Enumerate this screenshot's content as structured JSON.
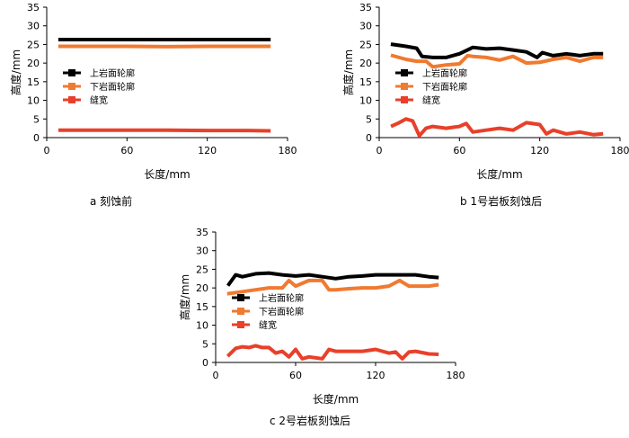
{
  "chart_data": [
    {
      "type": "line",
      "caption": "a 刻蚀前",
      "xlabel": "长度/mm",
      "ylabel": "高度/mm",
      "xlim": [
        0,
        180
      ],
      "ylim": [
        0,
        35
      ],
      "xticks": [
        "0",
        "60",
        "120",
        "180"
      ],
      "yticks": [
        "0",
        "5",
        "10",
        "15",
        "20",
        "25",
        "30",
        "35"
      ],
      "legend_position": "left-middle",
      "series": [
        {
          "name": "上岩面轮廓",
          "color": "#000000",
          "x": [
            10,
            30,
            60,
            90,
            120,
            150,
            166
          ],
          "y": [
            26.3,
            26.3,
            26.3,
            26.3,
            26.3,
            26.3,
            26.3
          ]
        },
        {
          "name": "下岩面轮廓",
          "color": "#f07a30",
          "x": [
            10,
            30,
            60,
            90,
            120,
            150,
            166
          ],
          "y": [
            24.5,
            24.5,
            24.5,
            24.4,
            24.5,
            24.5,
            24.5
          ]
        },
        {
          "name": "缝宽",
          "color": "#e8402a",
          "x": [
            10,
            30,
            60,
            90,
            120,
            150,
            166
          ],
          "y": [
            2.0,
            2.0,
            2.0,
            2.0,
            1.9,
            1.9,
            1.8
          ]
        }
      ]
    },
    {
      "type": "line",
      "caption": "b 1号岩板刻蚀后",
      "xlabel": "长度/mm",
      "ylabel": "高度/mm",
      "xlim": [
        0,
        180
      ],
      "ylim": [
        0,
        35
      ],
      "xticks": [
        "0",
        "60",
        "120",
        "180"
      ],
      "yticks": [
        "0",
        "5",
        "10",
        "15",
        "20",
        "25",
        "30",
        "35"
      ],
      "legend_position": "left-middle",
      "series": [
        {
          "name": "上岩面轮廓",
          "color": "#000000",
          "x": [
            10,
            20,
            28,
            32,
            40,
            50,
            60,
            66,
            70,
            80,
            90,
            100,
            110,
            118,
            122,
            130,
            140,
            150,
            160,
            166
          ],
          "y": [
            25.0,
            24.5,
            24.0,
            21.8,
            21.5,
            21.5,
            22.5,
            23.5,
            24.2,
            23.8,
            24.0,
            23.5,
            23.0,
            21.5,
            22.8,
            22.0,
            22.5,
            22.0,
            22.5,
            22.5
          ]
        },
        {
          "name": "下岩面轮廓",
          "color": "#f07a30",
          "x": [
            10,
            20,
            28,
            35,
            40,
            50,
            60,
            66,
            70,
            80,
            90,
            100,
            110,
            120,
            130,
            140,
            150,
            160,
            166
          ],
          "y": [
            22.0,
            21.0,
            20.5,
            20.5,
            19.0,
            19.5,
            19.8,
            22.0,
            21.8,
            21.5,
            20.8,
            21.8,
            20.0,
            20.2,
            21.0,
            21.5,
            20.5,
            21.5,
            21.5
          ]
        },
        {
          "name": "缝宽",
          "color": "#e8402a",
          "x": [
            10,
            15,
            20,
            25,
            30,
            35,
            40,
            50,
            60,
            65,
            70,
            80,
            90,
            100,
            110,
            120,
            125,
            130,
            140,
            150,
            160,
            166
          ],
          "y": [
            3.2,
            4.0,
            5.0,
            4.5,
            0.5,
            2.5,
            3.0,
            2.5,
            3.0,
            3.8,
            1.5,
            2.0,
            2.5,
            2.0,
            4.0,
            3.5,
            1.0,
            2.0,
            1.0,
            1.5,
            0.8,
            1.0
          ]
        }
      ]
    },
    {
      "type": "line",
      "caption": "c 2号岩板刻蚀后",
      "xlabel": "长度/mm",
      "ylabel": "高度/mm",
      "xlim": [
        0,
        180
      ],
      "ylim": [
        0,
        35
      ],
      "xticks": [
        "0",
        "60",
        "120",
        "180"
      ],
      "yticks": [
        "0",
        "5",
        "10",
        "15",
        "20",
        "25",
        "30",
        "35"
      ],
      "legend_position": "left-middle",
      "series": [
        {
          "name": "上岩面轮廓",
          "color": "#000000",
          "x": [
            10,
            15,
            20,
            30,
            40,
            50,
            60,
            70,
            80,
            90,
            100,
            110,
            120,
            130,
            140,
            150,
            160,
            166
          ],
          "y": [
            21.0,
            23.5,
            23.0,
            23.8,
            24.0,
            23.5,
            23.2,
            23.5,
            23.0,
            22.5,
            23.0,
            23.2,
            23.5,
            23.5,
            23.5,
            23.5,
            23.0,
            22.8
          ]
        },
        {
          "name": "下岩面轮廓",
          "color": "#f07a30",
          "x": [
            10,
            20,
            30,
            40,
            50,
            55,
            60,
            70,
            80,
            85,
            90,
            100,
            110,
            120,
            130,
            138,
            145,
            150,
            160,
            166
          ],
          "y": [
            18.5,
            19.0,
            19.5,
            20.0,
            20.0,
            22.0,
            20.5,
            22.0,
            22.0,
            19.5,
            19.5,
            19.8,
            20.0,
            20.0,
            20.5,
            22.0,
            20.5,
            20.5,
            20.5,
            20.8
          ]
        },
        {
          "name": "缝宽",
          "color": "#e8402a",
          "x": [
            10,
            15,
            20,
            25,
            30,
            35,
            40,
            45,
            50,
            55,
            60,
            65,
            70,
            80,
            85,
            90,
            100,
            110,
            120,
            130,
            135,
            140,
            145,
            150,
            160,
            166
          ],
          "y": [
            2.0,
            3.8,
            4.2,
            4.0,
            4.5,
            4.0,
            4.0,
            2.5,
            3.0,
            1.5,
            3.5,
            1.0,
            1.5,
            1.0,
            3.5,
            3.0,
            3.0,
            3.0,
            3.5,
            2.5,
            2.8,
            1.0,
            2.8,
            3.0,
            2.3,
            2.2
          ]
        }
      ]
    }
  ]
}
